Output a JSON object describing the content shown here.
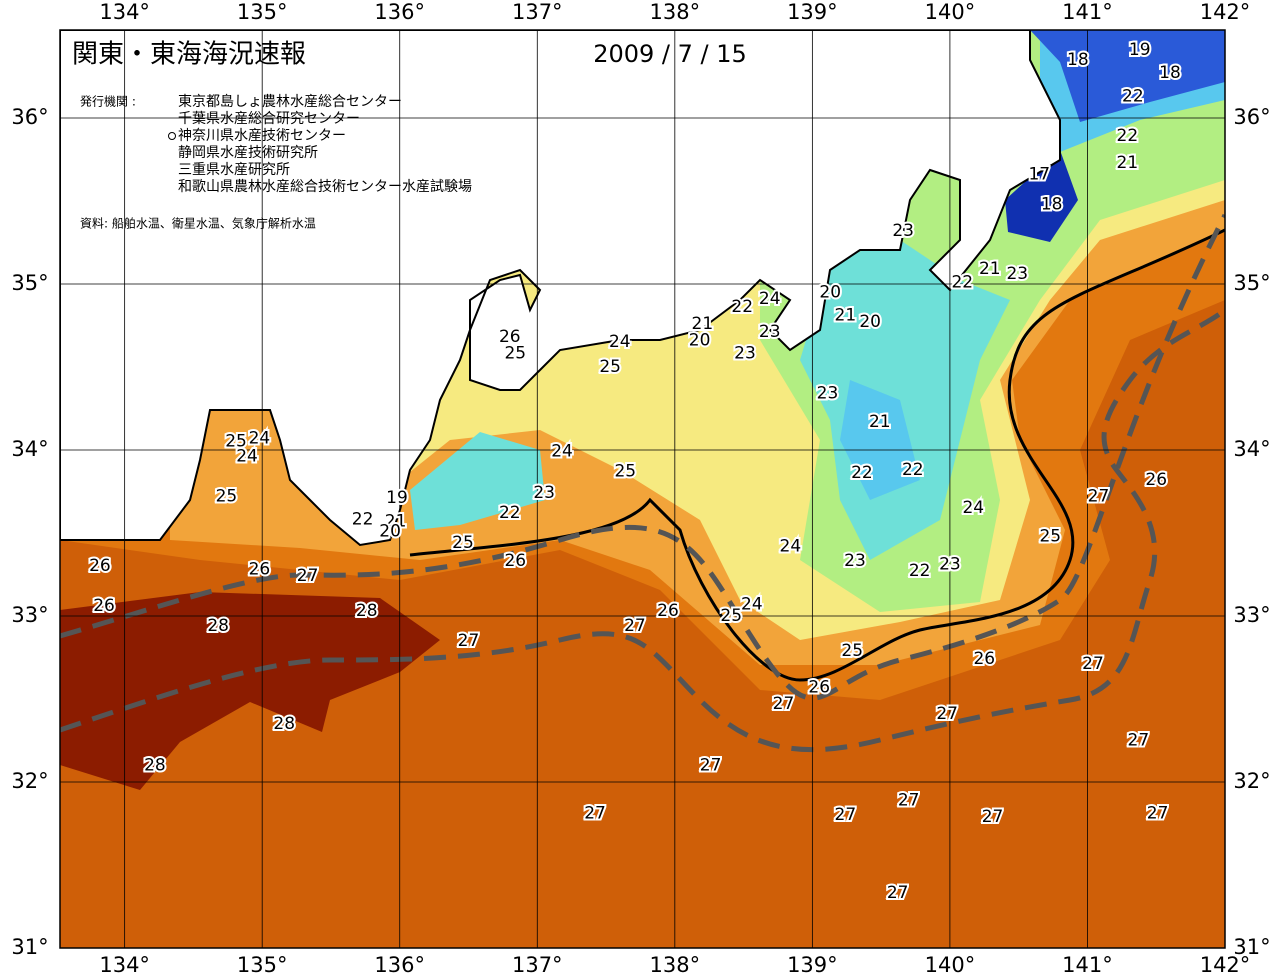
{
  "header": {
    "title": "関東・東海海況速報",
    "date": "2009 / 7 / 15",
    "publisher_heading": "発行機関 :",
    "publishers": [
      "東京都島しょ農林水産総合センター",
      "千葉県水産総合研究センター",
      "神奈川県水産技術センター",
      "静岡県水産技術研究所",
      "三重県水産研究所",
      "和歌山県農林水産総合技術センター水産試験場"
    ],
    "source": "資料: 船舶水温、衛星水温、気象庁解析水温"
  },
  "map": {
    "xlim": [
      133.53,
      142
    ],
    "ylim": [
      31,
      36.53
    ],
    "lon_ticks": [
      {
        "value": 134,
        "label": "134°"
      },
      {
        "value": 135,
        "label": "135°"
      },
      {
        "value": 136,
        "label": "136°"
      },
      {
        "value": 137,
        "label": "137°"
      },
      {
        "value": 138,
        "label": "138°"
      },
      {
        "value": 139,
        "label": "139°"
      },
      {
        "value": 140,
        "label": "140°"
      },
      {
        "value": 141,
        "label": "141°"
      },
      {
        "value": 142,
        "label": "142°"
      }
    ],
    "lat_ticks": [
      {
        "value": 31,
        "label": "31°"
      },
      {
        "value": 32,
        "label": "32°"
      },
      {
        "value": 33,
        "label": "33°"
      },
      {
        "value": 34,
        "label": "34°"
      },
      {
        "value": 35,
        "label": "35°"
      },
      {
        "value": 36,
        "label": "36°"
      }
    ],
    "contour_labels": [
      {
        "value": 18,
        "lon": 140.93,
        "lat": 36.35
      },
      {
        "value": 19,
        "lon": 141.38,
        "lat": 36.41
      },
      {
        "value": 18,
        "lon": 141.6,
        "lat": 36.27
      },
      {
        "value": 22,
        "lon": 141.33,
        "lat": 36.13
      },
      {
        "value": 22,
        "lon": 141.29,
        "lat": 35.89
      },
      {
        "value": 21,
        "lon": 141.29,
        "lat": 35.73
      },
      {
        "value": 17,
        "lon": 140.65,
        "lat": 35.66
      },
      {
        "value": 18,
        "lon": 140.74,
        "lat": 35.48
      },
      {
        "value": 23,
        "lon": 139.66,
        "lat": 35.32
      },
      {
        "value": 22,
        "lon": 140.09,
        "lat": 35.01
      },
      {
        "value": 21,
        "lon": 140.29,
        "lat": 35.09
      },
      {
        "value": 23,
        "lon": 140.49,
        "lat": 35.06
      },
      {
        "value": 20,
        "lon": 139.13,
        "lat": 34.95
      },
      {
        "value": 24,
        "lon": 138.69,
        "lat": 34.91
      },
      {
        "value": 22,
        "lon": 138.49,
        "lat": 34.86
      },
      {
        "value": 21,
        "lon": 139.24,
        "lat": 34.81
      },
      {
        "value": 20,
        "lon": 139.42,
        "lat": 34.77
      },
      {
        "value": 23,
        "lon": 138.69,
        "lat": 34.71
      },
      {
        "value": 21,
        "lon": 138.2,
        "lat": 34.76
      },
      {
        "value": 20,
        "lon": 138.18,
        "lat": 34.66
      },
      {
        "value": 23,
        "lon": 138.51,
        "lat": 34.58
      },
      {
        "value": 24,
        "lon": 137.6,
        "lat": 34.65
      },
      {
        "value": 26,
        "lon": 136.8,
        "lat": 34.68
      },
      {
        "value": 25,
        "lon": 136.84,
        "lat": 34.58
      },
      {
        "value": 25,
        "lon": 137.53,
        "lat": 34.5
      },
      {
        "value": 23,
        "lon": 139.11,
        "lat": 34.34
      },
      {
        "value": 21,
        "lon": 139.49,
        "lat": 34.17
      },
      {
        "value": 22,
        "lon": 139.36,
        "lat": 33.86
      },
      {
        "value": 22,
        "lon": 139.73,
        "lat": 33.88
      },
      {
        "value": 25,
        "lon": 134.81,
        "lat": 34.05
      },
      {
        "value": 24,
        "lon": 134.98,
        "lat": 34.07
      },
      {
        "value": 24,
        "lon": 134.89,
        "lat": 33.96
      },
      {
        "value": 24,
        "lon": 137.18,
        "lat": 33.99
      },
      {
        "value": 25,
        "lon": 137.64,
        "lat": 33.87
      },
      {
        "value": 19,
        "lon": 135.98,
        "lat": 33.71
      },
      {
        "value": 23,
        "lon": 137.05,
        "lat": 33.74
      },
      {
        "value": 22,
        "lon": 136.8,
        "lat": 33.62
      },
      {
        "value": 25,
        "lon": 134.74,
        "lat": 33.72
      },
      {
        "value": 22,
        "lon": 135.73,
        "lat": 33.58
      },
      {
        "value": 21,
        "lon": 135.97,
        "lat": 33.57
      },
      {
        "value": 20,
        "lon": 135.93,
        "lat": 33.51
      },
      {
        "value": 24,
        "lon": 140.17,
        "lat": 33.65
      },
      {
        "value": 25,
        "lon": 140.73,
        "lat": 33.48
      },
      {
        "value": 24,
        "lon": 138.84,
        "lat": 33.42
      },
      {
        "value": 25,
        "lon": 136.46,
        "lat": 33.44
      },
      {
        "value": 26,
        "lon": 136.84,
        "lat": 33.33
      },
      {
        "value": 23,
        "lon": 139.31,
        "lat": 33.33
      },
      {
        "value": 23,
        "lon": 140.0,
        "lat": 33.31
      },
      {
        "value": 22,
        "lon": 139.78,
        "lat": 33.27
      },
      {
        "value": 26,
        "lon": 133.82,
        "lat": 33.3
      },
      {
        "value": 26,
        "lon": 134.98,
        "lat": 33.28
      },
      {
        "value": 27,
        "lon": 135.33,
        "lat": 33.24
      },
      {
        "value": 26,
        "lon": 133.85,
        "lat": 33.06
      },
      {
        "value": 28,
        "lon": 135.76,
        "lat": 33.03
      },
      {
        "value": 28,
        "lon": 134.68,
        "lat": 32.94
      },
      {
        "value": 27,
        "lon": 137.71,
        "lat": 32.94
      },
      {
        "value": 26,
        "lon": 137.95,
        "lat": 33.03
      },
      {
        "value": 24,
        "lon": 138.56,
        "lat": 33.07
      },
      {
        "value": 25,
        "lon": 138.41,
        "lat": 33.0
      },
      {
        "value": 27,
        "lon": 136.5,
        "lat": 32.85
      },
      {
        "value": 25,
        "lon": 139.29,
        "lat": 32.79
      },
      {
        "value": 26,
        "lon": 140.25,
        "lat": 32.74
      },
      {
        "value": 27,
        "lon": 141.04,
        "lat": 32.71
      },
      {
        "value": 26,
        "lon": 139.05,
        "lat": 32.57
      },
      {
        "value": 27,
        "lon": 138.79,
        "lat": 32.47
      },
      {
        "value": 27,
        "lon": 139.98,
        "lat": 32.41
      },
      {
        "value": 28,
        "lon": 135.16,
        "lat": 32.35
      },
      {
        "value": 27,
        "lon": 141.37,
        "lat": 32.25
      },
      {
        "value": 28,
        "lon": 134.22,
        "lat": 32.1
      },
      {
        "value": 27,
        "lon": 138.26,
        "lat": 32.1
      },
      {
        "value": 27,
        "lon": 139.7,
        "lat": 31.89
      },
      {
        "value": 27,
        "lon": 137.42,
        "lat": 31.81
      },
      {
        "value": 27,
        "lon": 139.24,
        "lat": 31.8
      },
      {
        "value": 27,
        "lon": 140.31,
        "lat": 31.79
      },
      {
        "value": 27,
        "lon": 141.51,
        "lat": 31.81
      },
      {
        "value": 27,
        "lon": 139.62,
        "lat": 31.33
      },
      {
        "value": 27,
        "lon": 141.08,
        "lat": 33.72
      },
      {
        "value": 26,
        "lon": 141.5,
        "lat": 33.82
      }
    ]
  }
}
